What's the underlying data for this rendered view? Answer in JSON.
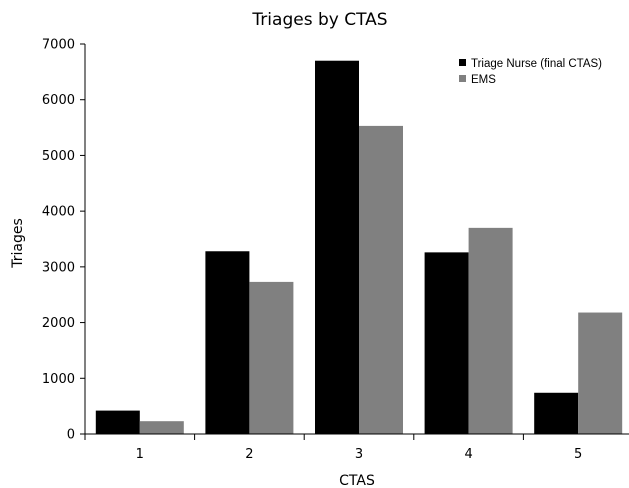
{
  "chart_data": {
    "type": "bar",
    "title": "Triages by CTAS",
    "xlabel": "CTAS",
    "ylabel": "Triages",
    "categories": [
      "1",
      "2",
      "3",
      "4",
      "5"
    ],
    "series": [
      {
        "name": "Triage Nurse (final CTAS)",
        "color": "#000000",
        "values": [
          420,
          3280,
          6700,
          3260,
          740
        ]
      },
      {
        "name": "EMS",
        "color": "#808080",
        "values": [
          230,
          2730,
          5530,
          3700,
          2180
        ]
      }
    ],
    "ylim": [
      0,
      7000
    ],
    "yticks": [
      "0",
      "1000",
      "2000",
      "3000",
      "4000",
      "5000",
      "6000",
      "7000"
    ],
    "grid": false,
    "legend": "top-right"
  }
}
